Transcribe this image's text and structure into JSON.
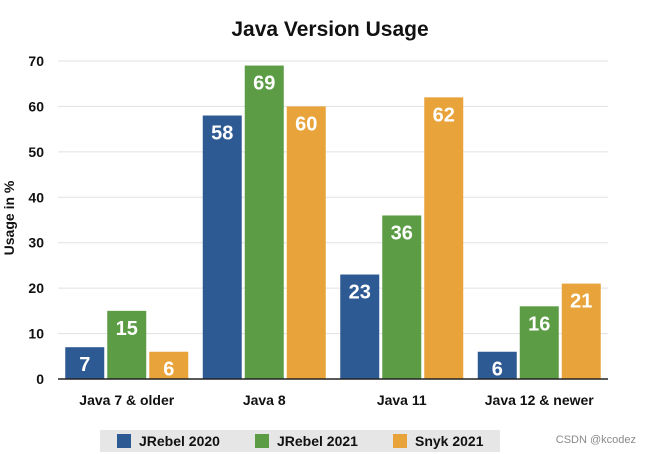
{
  "watermark": "CSDN @kcodez",
  "chart_data": {
    "type": "bar",
    "title": "Java Version Usage",
    "xlabel": "",
    "ylabel": "Usage in %",
    "ylim": [
      0,
      70
    ],
    "yticks": [
      0,
      10,
      20,
      30,
      40,
      50,
      60,
      70
    ],
    "grid": true,
    "legend": "bottom",
    "categories": [
      "Java 7 & older",
      "Java 8",
      "Java 11",
      "Java 12 & newer"
    ],
    "series": [
      {
        "name": "JRebel 2020",
        "color": "#2e5a94",
        "values": [
          7,
          58,
          23,
          6
        ]
      },
      {
        "name": "JRebel 2021",
        "color": "#5b9c45",
        "values": [
          15,
          69,
          36,
          16
        ]
      },
      {
        "name": "Snyk 2021",
        "color": "#e8a33a",
        "values": [
          6,
          60,
          62,
          21
        ]
      }
    ]
  }
}
